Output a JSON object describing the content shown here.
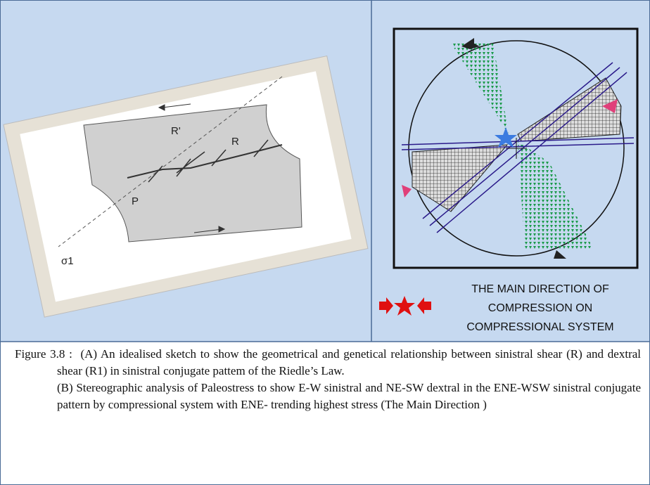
{
  "panel_a": {
    "labels": [
      "R'",
      "R",
      "P",
      "σ1"
    ]
  },
  "panel_b": {
    "legend": [
      "THE MAIN DIRECTION OF",
      "COMPRESSION ON",
      "COMPRESSIONAL SYSTEM"
    ]
  },
  "caption": {
    "label": "Figure 3.8 :",
    "part_a": "(A) An idealised sketch to show the geometrical and genetical relationship between sinistral shear (R) and dextral shear (R1) in sinistral conjugate pattem of the Riedle’s Law.",
    "part_b": "(B) Stereographic analysis of Paleostress to show E-W sinistral and NE-SW dextral in the ENE-WSW sinistral conjugate pattern by compressional system with ENE- trending highest stress (The Main Direction )"
  }
}
